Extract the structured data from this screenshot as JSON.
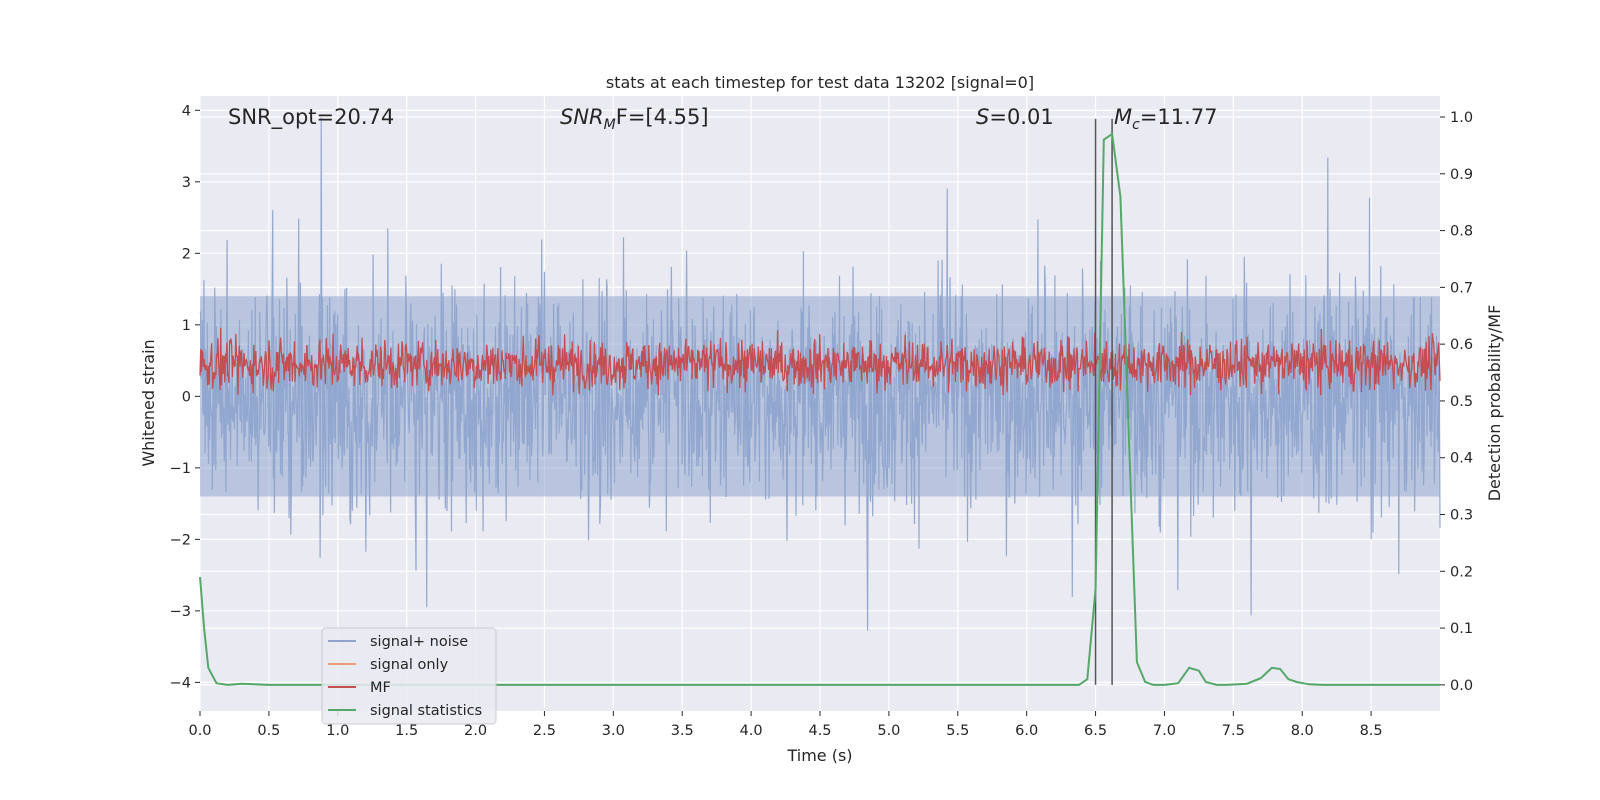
{
  "chart_data": {
    "type": "line",
    "title": "stats at each timestep for test data 13202 [signal=0]",
    "xlabel": "Time (s)",
    "ylabel_left": "Whitened strain",
    "ylabel_right": "Detection probability/MF",
    "xlim": [
      0.0,
      9.0
    ],
    "ylim_left": [
      -4.4,
      4.2
    ],
    "ylim_right": [
      -0.046,
      1.037
    ],
    "xticks": [
      "0.0",
      "0.5",
      "1.0",
      "1.5",
      "2.0",
      "2.5",
      "3.0",
      "3.5",
      "4.0",
      "4.5",
      "5.0",
      "5.5",
      "6.0",
      "6.5",
      "7.0",
      "7.5",
      "8.0",
      "8.5"
    ],
    "yticks_left": [
      "4",
      "3",
      "2",
      "1",
      "0",
      "−1",
      "−2",
      "−3",
      "−4"
    ],
    "yticks_right": [
      "1.0",
      "0.9",
      "0.8",
      "0.7",
      "0.6",
      "0.5",
      "0.4",
      "0.3",
      "0.2",
      "0.1",
      "0.0"
    ],
    "grid": true,
    "legend_position": "lower-left",
    "annotations": {
      "snr_opt": "SNR_opt=20.74",
      "snr_mf_main": "SNR",
      "snr_mf_sub": "M",
      "snr_mf_tail": "F=[4.55]",
      "s_main": "S",
      "s_tail": "=0.01",
      "mc_main": "M",
      "mc_sub": "c",
      "mc_tail": "=11.77"
    },
    "vlines_x": [
      6.5,
      6.62
    ],
    "series": [
      {
        "name": "signal+ noise",
        "color": "#8fa5cd",
        "axis": "left",
        "description": "noisy whitened strain, roughly within ±2 with spikes to about ±3.8"
      },
      {
        "name": "signal only",
        "color": "#e8a07c",
        "axis": "left",
        "values": []
      },
      {
        "name": "MF",
        "color": "#c44e52",
        "axis": "right",
        "description": "matched filter output fluctuating between about 0.51 and 0.62"
      },
      {
        "name": "signal statistics",
        "color": "#55a868",
        "axis": "right",
        "x": [
          0.0,
          0.03,
          0.06,
          0.12,
          0.2,
          0.3,
          0.5,
          1.0,
          2.0,
          3.0,
          4.0,
          5.0,
          6.0,
          6.38,
          6.44,
          6.5,
          6.56,
          6.62,
          6.68,
          6.74,
          6.8,
          6.86,
          6.92,
          7.0,
          7.1,
          7.18,
          7.25,
          7.3,
          7.38,
          7.45,
          7.6,
          7.7,
          7.78,
          7.84,
          7.9,
          7.96,
          8.05,
          8.15,
          8.3,
          8.6,
          9.0
        ],
        "values": [
          0.19,
          0.1,
          0.03,
          0.003,
          0.0,
          0.002,
          0.0,
          0.0,
          0.0,
          0.0,
          0.0,
          0.0,
          0.0,
          0.0,
          0.01,
          0.17,
          0.96,
          0.97,
          0.86,
          0.45,
          0.04,
          0.005,
          0.0,
          0.0,
          0.003,
          0.03,
          0.025,
          0.005,
          0.0,
          0.0,
          0.002,
          0.012,
          0.03,
          0.028,
          0.01,
          0.005,
          0.001,
          0.0,
          0.0,
          0.0,
          0.0
        ]
      }
    ]
  }
}
